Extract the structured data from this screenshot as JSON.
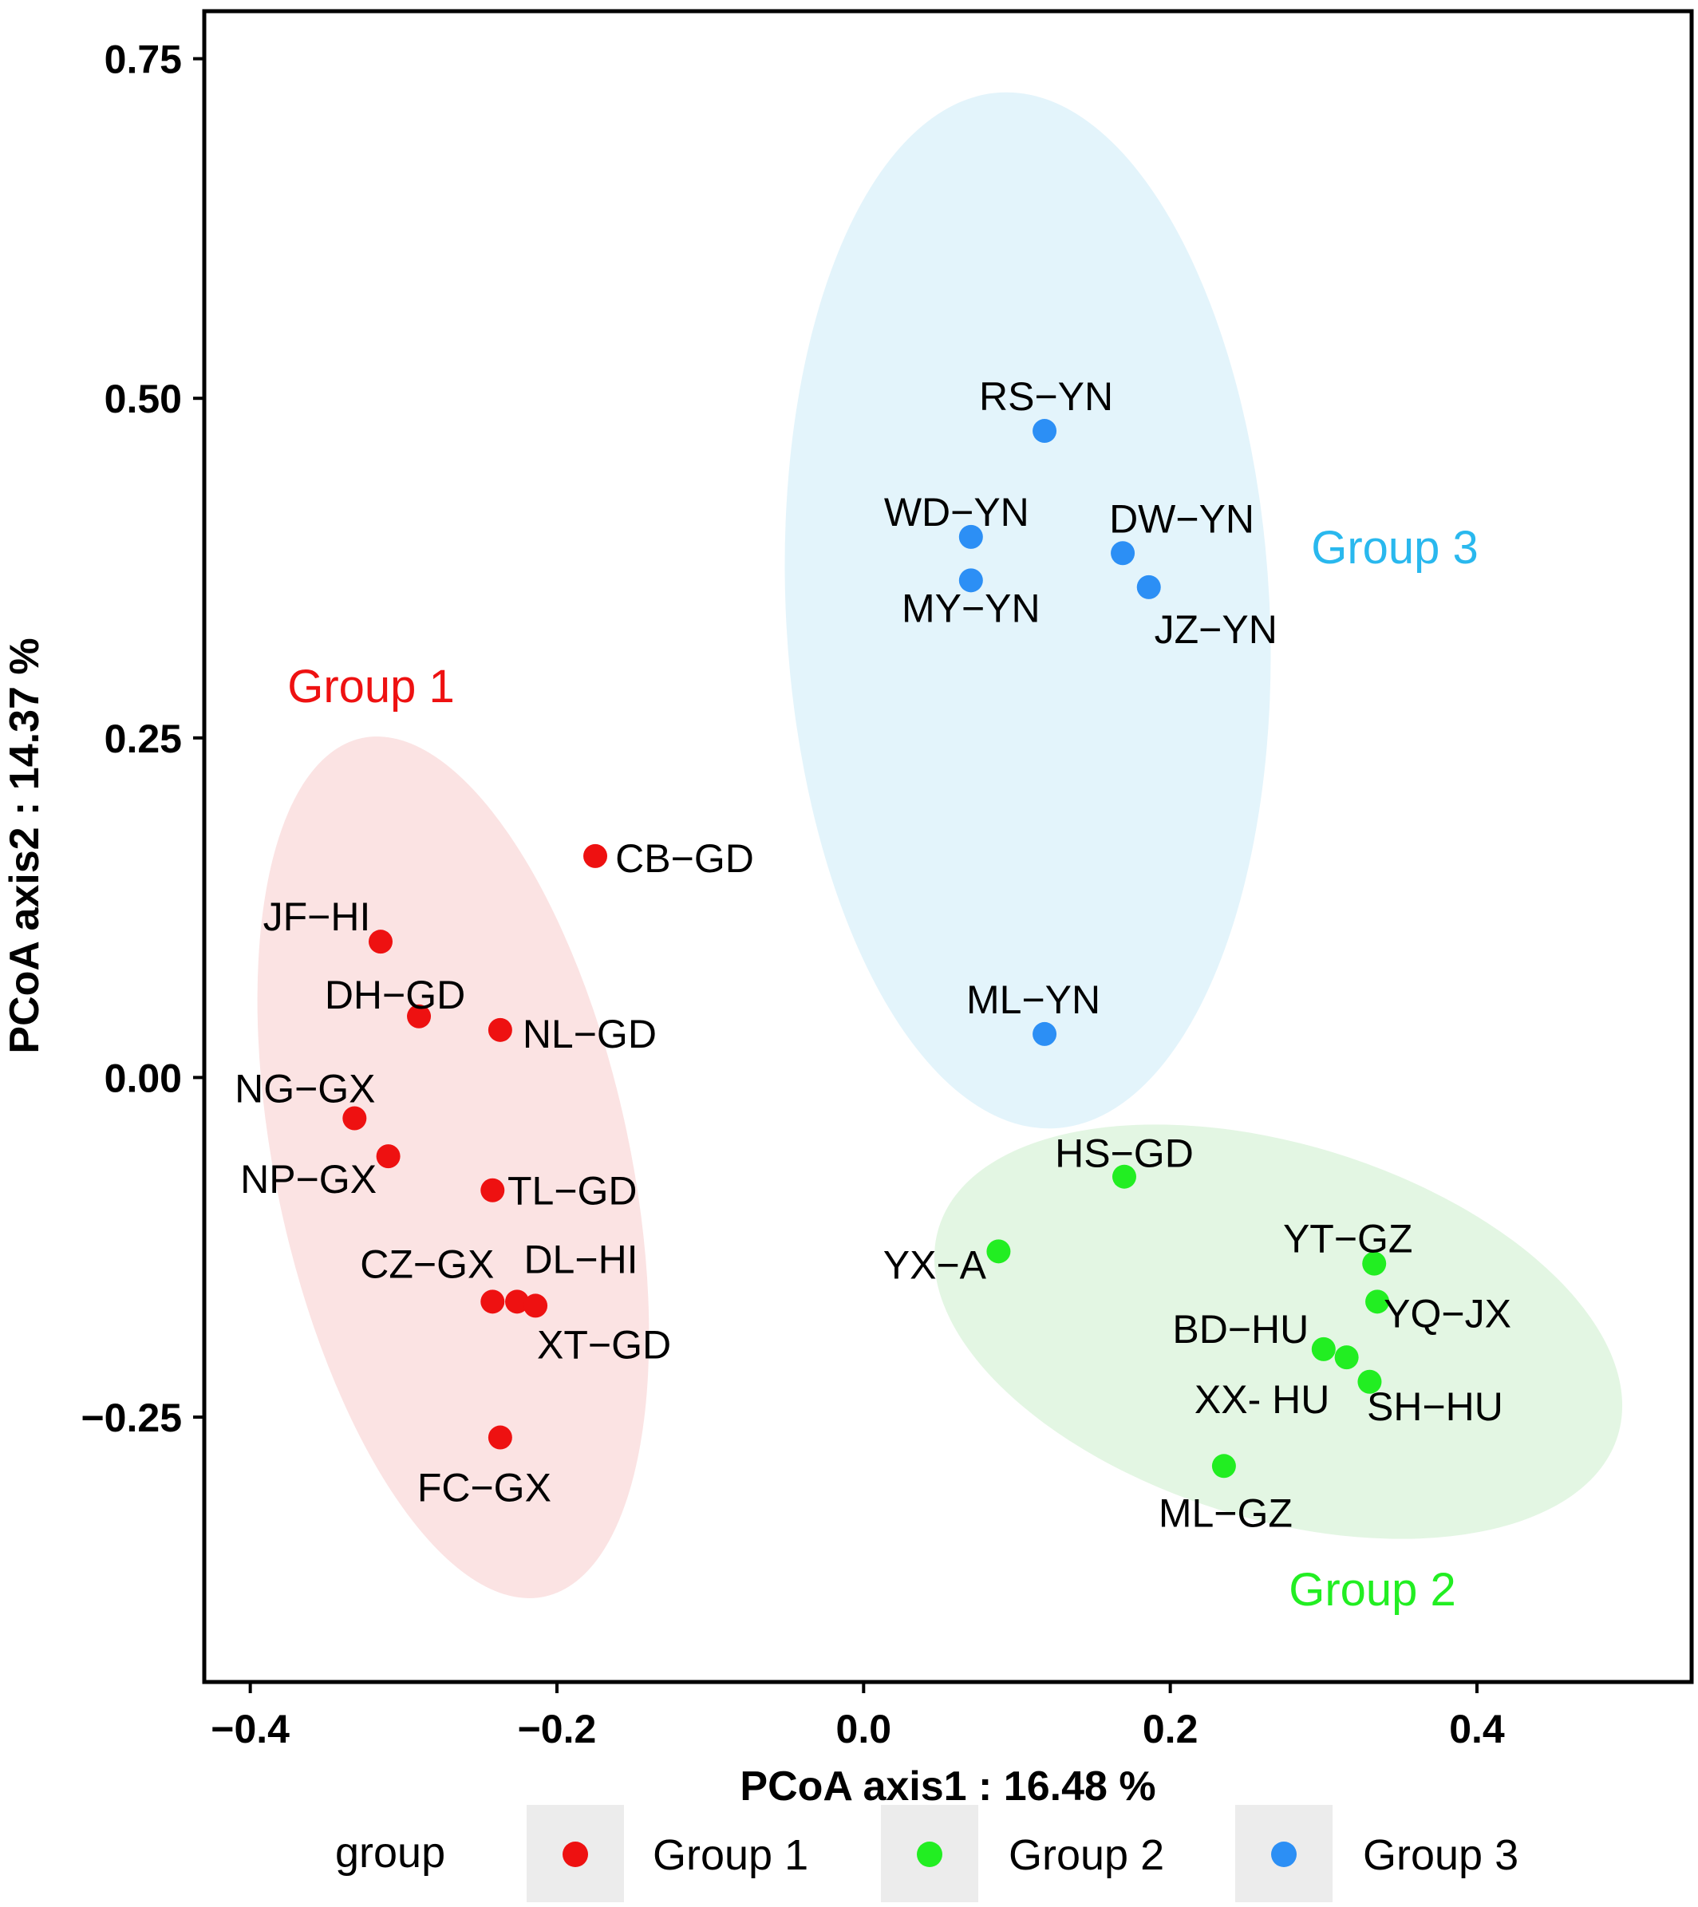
{
  "chart_data": {
    "type": "scatter",
    "xlabel": "PCoA axis1 : 16.48 %",
    "ylabel": "PCoA axis2 : 14.37 %",
    "xlim": [
      -0.43,
      0.54
    ],
    "ylim": [
      -0.445,
      0.785
    ],
    "xticks": [
      -0.4,
      -0.2,
      0.0,
      0.2,
      0.4
    ],
    "xtick_labels": [
      "−0.4",
      "−0.2",
      "0.0",
      "0.2",
      "0.4"
    ],
    "yticks": [
      0.75,
      0.5,
      0.25,
      0.0,
      -0.25
    ],
    "ytick_labels": [
      "0.75",
      "0.50",
      "0.25",
      "0.00",
      "−0.25"
    ],
    "grid": false,
    "legend": {
      "title": "group",
      "position": "bottom",
      "entries": [
        "Group 1",
        "Group 2",
        "Group 3"
      ]
    },
    "series": [
      {
        "name": "Group 1",
        "color": "#ee1111",
        "ellipse_color": "#fbe3e3",
        "annotation": "Group 1",
        "points": [
          {
            "label": "CB−GD",
            "x": -0.175,
            "y": 0.163
          },
          {
            "label": "JF−HI",
            "x": -0.315,
            "y": 0.1
          },
          {
            "label": "DH−GD",
            "x": -0.29,
            "y": 0.045
          },
          {
            "label": "NL−GD",
            "x": -0.237,
            "y": 0.035
          },
          {
            "label": "NG−GX",
            "x": -0.332,
            "y": -0.03
          },
          {
            "label": "NP−GX",
            "x": -0.31,
            "y": -0.058
          },
          {
            "label": "TL−GD",
            "x": -0.242,
            "y": -0.083
          },
          {
            "label": "CZ−GX",
            "x": -0.242,
            "y": -0.165
          },
          {
            "label": "DL−HI",
            "x": -0.226,
            "y": -0.165
          },
          {
            "label": "XT−GD",
            "x": -0.214,
            "y": -0.168
          },
          {
            "label": "FC−GX",
            "x": -0.237,
            "y": -0.265
          }
        ]
      },
      {
        "name": "Group 2",
        "color": "#22ee22",
        "ellipse_color": "#e3f6e3",
        "annotation": "Group 2",
        "points": [
          {
            "label": "HS−GD",
            "x": 0.17,
            "y": -0.073
          },
          {
            "label": "YX−A",
            "x": 0.088,
            "y": -0.128
          },
          {
            "label": "YT−GZ",
            "x": 0.333,
            "y": -0.137
          },
          {
            "label": "YQ−JX",
            "x": 0.335,
            "y": -0.165
          },
          {
            "label": "BD−HU",
            "x": 0.3,
            "y": -0.2
          },
          {
            "label": "XX- HU",
            "x": 0.315,
            "y": -0.206
          },
          {
            "label": "SH−HU",
            "x": 0.33,
            "y": -0.224
          },
          {
            "label": "ML−GZ",
            "x": 0.235,
            "y": -0.286
          }
        ]
      },
      {
        "name": "Group 3",
        "color": "#2c8ff5",
        "ellipse_color": "#e3f4fb",
        "annotation": "Group 3",
        "points": [
          {
            "label": "RS−YN",
            "x": 0.118,
            "y": 0.476
          },
          {
            "label": "WD−YN",
            "x": 0.07,
            "y": 0.398
          },
          {
            "label": "MY−YN",
            "x": 0.07,
            "y": 0.366
          },
          {
            "label": "DW−YN",
            "x": 0.169,
            "y": 0.386
          },
          {
            "label": "JZ−YN",
            "x": 0.186,
            "y": 0.361
          },
          {
            "label": "ML−YN",
            "x": 0.118,
            "y": 0.032
          }
        ]
      }
    ]
  }
}
